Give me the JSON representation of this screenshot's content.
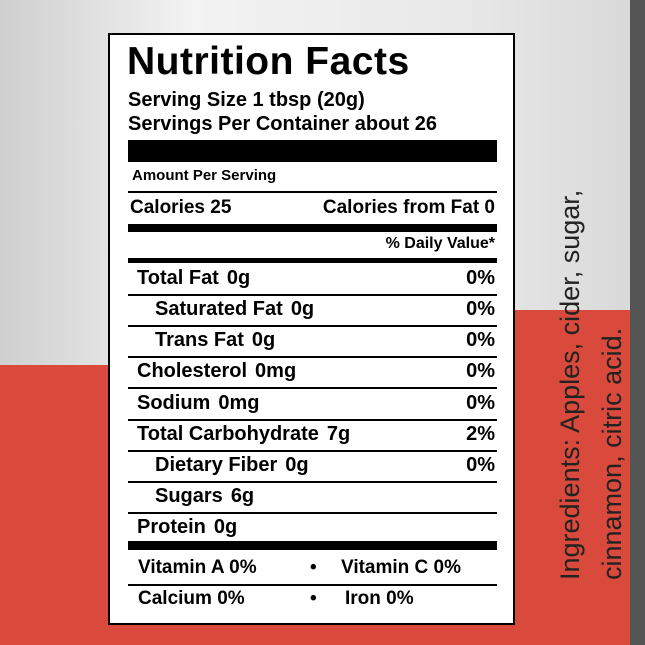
{
  "label": {
    "title": "Nutrition Facts",
    "serving_size": "Serving Size 1 tbsp (20g)",
    "servings_per_container": "Servings Per Container about 26",
    "amount_per_serving": "Amount Per Serving",
    "calories": "Calories 25",
    "calories_from_fat": "Calories from Fat 0",
    "daily_value_header": "% Daily Value*",
    "rows": [
      {
        "name": "Total Fat",
        "amount": "0g",
        "dv": "0%",
        "indent": false
      },
      {
        "name": "Saturated Fat",
        "amount": "0g",
        "dv": "0%",
        "indent": true
      },
      {
        "name": "Trans Fat",
        "amount": "0g",
        "dv": "0%",
        "indent": true
      },
      {
        "name": "Cholesterol",
        "amount": "0mg",
        "dv": "0%",
        "indent": false
      },
      {
        "name": "Sodium",
        "amount": "0mg",
        "dv": "0%",
        "indent": false
      },
      {
        "name": "Total Carbohydrate",
        "amount": "7g",
        "dv": "2%",
        "indent": false
      },
      {
        "name": "Dietary Fiber",
        "amount": "0g",
        "dv": "0%",
        "indent": true
      },
      {
        "name": "Sugars",
        "amount": "6g",
        "dv": null,
        "indent": true
      },
      {
        "name": "Protein",
        "amount": "0g",
        "dv": null,
        "indent": false
      }
    ],
    "vitamins": [
      [
        "Vitamin A 0%",
        "•",
        "Vitamin C 0%"
      ],
      [
        "Calcium 0%",
        "•",
        "Iron 0%"
      ]
    ]
  },
  "ingredients": [
    "Ingredients: Apples, cider, sugar,",
    "cinnamon, citric acid."
  ]
}
